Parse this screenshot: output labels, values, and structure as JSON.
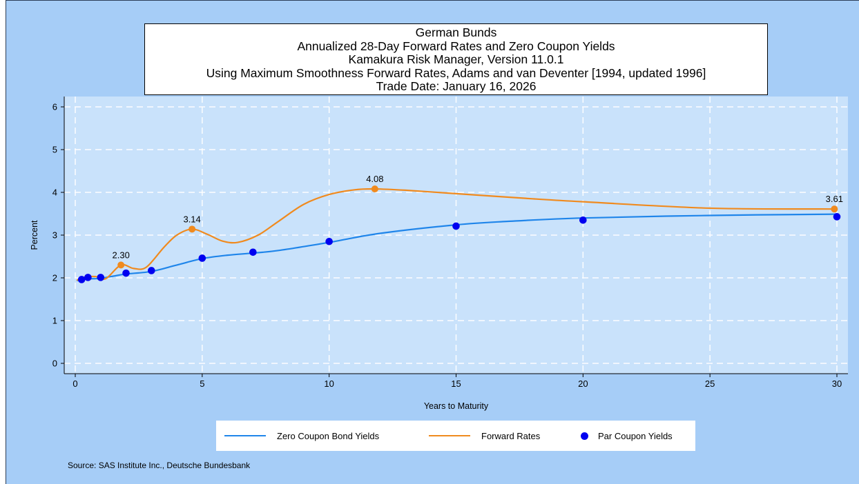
{
  "chart_data": {
    "type": "line",
    "title_lines": [
      "German Bunds",
      "Annualized 28-Day Forward Rates and Zero Coupon Yields",
      "Kamakura Risk Manager, Version 11.0.1",
      "Using Maximum Smoothness Forward Rates, Adams and van Deventer [1994, updated 1996]",
      "Trade Date: January 16, 2026"
    ],
    "xlabel": "Years to Maturity",
    "ylabel": "Percent",
    "xlim": [
      0,
      30
    ],
    "ylim": [
      0,
      6
    ],
    "x_ticks": [
      0,
      5,
      10,
      15,
      20,
      25,
      30
    ],
    "y_ticks": [
      0,
      1,
      2,
      3,
      4,
      5,
      6
    ],
    "grid": true,
    "legend_placement": "bottom",
    "series": [
      {
        "name": "Zero Coupon Bond Yields",
        "kind": "line",
        "color": "#1f85ea",
        "x": [
          0.08,
          0.25,
          0.5,
          0.75,
          1,
          1.5,
          2,
          3,
          4,
          5,
          6,
          7,
          8,
          10,
          12,
          15,
          17,
          20,
          25,
          30
        ],
        "y": [
          1.94,
          1.96,
          1.98,
          1.98,
          1.99,
          2.04,
          2.09,
          2.15,
          2.3,
          2.45,
          2.53,
          2.58,
          2.64,
          2.83,
          3.04,
          3.24,
          3.32,
          3.4,
          3.46,
          3.49
        ]
      },
      {
        "name": "Forward Rates",
        "kind": "line",
        "color": "#f08a1e",
        "x": [
          0.08,
          0.4,
          0.8,
          1.2,
          1.8,
          2.3,
          2.8,
          3.5,
          4.0,
          4.6,
          5.2,
          5.8,
          6.4,
          7.2,
          8.0,
          9.0,
          10.0,
          11.0,
          11.8,
          13.0,
          15.0,
          18.0,
          20.0,
          25.0,
          29.9
        ],
        "y": [
          1.95,
          2.02,
          2.03,
          1.98,
          2.3,
          2.22,
          2.25,
          2.72,
          3.0,
          3.14,
          3.02,
          2.86,
          2.83,
          3.0,
          3.32,
          3.72,
          3.95,
          4.06,
          4.08,
          4.05,
          3.97,
          3.85,
          3.78,
          3.63,
          3.61
        ]
      },
      {
        "name": "Par Coupon Yields",
        "kind": "scatter",
        "color": "#0000f0",
        "x": [
          0.25,
          0.5,
          1,
          2,
          3,
          5,
          7,
          10,
          15,
          20,
          30
        ],
        "y": [
          1.96,
          2.01,
          2.01,
          2.11,
          2.17,
          2.46,
          2.6,
          2.85,
          3.21,
          3.35,
          3.43
        ]
      }
    ],
    "annotations": [
      {
        "x": 1.8,
        "y": 2.3,
        "label": "2.30"
      },
      {
        "x": 4.6,
        "y": 3.14,
        "label": "3.14"
      },
      {
        "x": 11.8,
        "y": 4.08,
        "label": "4.08"
      },
      {
        "x": 29.9,
        "y": 3.61,
        "label": "3.61"
      }
    ]
  },
  "legend": {
    "items": [
      {
        "label": "Zero Coupon Bond Yields",
        "color": "#1f85ea"
      },
      {
        "label": "Forward Rates",
        "color": "#f08a1e"
      },
      {
        "label": "Par Coupon Yields",
        "color": "#0000f0"
      }
    ]
  },
  "source": "Source: SAS Institute Inc., Deutsche Bundesbank",
  "colors": {
    "frame_bg": "#a6cdf7",
    "plot_bg": "#c9e2fb",
    "grid": "#ffffff",
    "forward_marker": "#f08a1e"
  }
}
